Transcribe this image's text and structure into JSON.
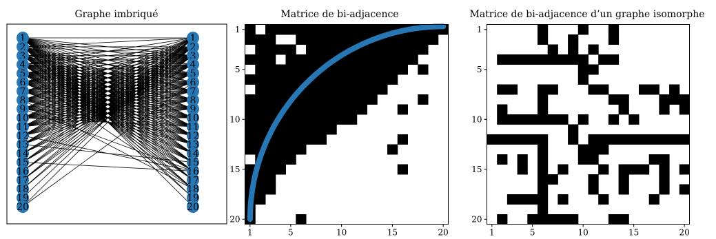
{
  "panels": {
    "graph": {
      "title": "Graphe imbriqué",
      "left_labels": [
        "1",
        "2",
        "3",
        "4",
        "5",
        "6",
        "7",
        "8",
        "9",
        "10",
        "11",
        "12",
        "13",
        "14",
        "15",
        "16",
        "17",
        "18",
        "19",
        "20"
      ],
      "right_labels": [
        "1",
        "2",
        "3",
        "4",
        "5",
        "6",
        "7",
        "8",
        "9",
        "10",
        "11",
        "12",
        "13",
        "14",
        "15",
        "16",
        "17",
        "18",
        "19",
        "20"
      ],
      "node_color": "#2677b4"
    },
    "matrix1": {
      "title": "Matrice de bi-adjacence",
      "x_ticks": [
        "1",
        "5",
        "10",
        "15",
        "20"
      ],
      "y_ticks": [
        "1",
        "5",
        "10",
        "15",
        "20"
      ],
      "curve_color": "#2677b4"
    },
    "matrix2": {
      "title": "Matrice de bi-adjacence d’un graphe isomorphe",
      "x_ticks": [
        "1",
        "5",
        "10",
        "15",
        "20"
      ],
      "y_ticks": [
        "1",
        "5",
        "10",
        "15",
        "20"
      ]
    }
  },
  "chart_data": [
    {
      "type": "heatmap",
      "title": "Matrice de bi-adjacence",
      "rows": 20,
      "cols": 20,
      "nested_row_degrees": [
        20,
        19,
        18,
        17,
        16,
        15,
        14,
        13,
        12,
        11,
        9,
        8,
        6,
        5,
        4,
        3,
        3,
        2,
        1,
        1
      ],
      "white_exceptions": [
        [
          1,
          2
        ],
        [
          3,
          1
        ],
        [
          2,
          4
        ],
        [
          2,
          5
        ],
        [
          3,
          6
        ],
        [
          4,
          4
        ],
        [
          5,
          1
        ],
        [
          7,
          1
        ],
        [
          14,
          1
        ]
      ],
      "black_exceptions": [
        [
          5,
          18
        ],
        [
          6,
          15
        ],
        [
          7,
          14
        ],
        [
          8,
          18
        ],
        [
          8,
          5
        ],
        [
          9,
          16
        ],
        [
          12,
          7
        ],
        [
          12,
          16
        ],
        [
          13,
          15
        ],
        [
          15,
          16
        ],
        [
          20,
          6
        ]
      ],
      "colors": {
        "one": "#000000",
        "zero": "#ffffff"
      }
    },
    {
      "type": "heatmap",
      "title": "Matrice de bi-adjacence d’un graphe isomorphe",
      "rows": 20,
      "cols": 20,
      "cells": [
        "00000100010010000000",
        "00000100100010000000",
        "00000010101000000000",
        "01111111110110000000",
        "00000000011000000000",
        "00000000010000000000",
        "01100110001100011010",
        "00000100000011000111",
        "01000100000001000101",
        "01111111010010100000",
        "00000000100000000000",
        "11111100101111111111",
        "00000100011100000000",
        "01010100011000001100",
        "00010101000101110101",
        "00000110001001000100",
        "00000100001001000101",
        "00111101000100001000",
        "00000100000000000000",
        "01001111100011000000"
      ],
      "colors": {
        "one": "#000000",
        "zero": "#ffffff"
      }
    }
  ]
}
